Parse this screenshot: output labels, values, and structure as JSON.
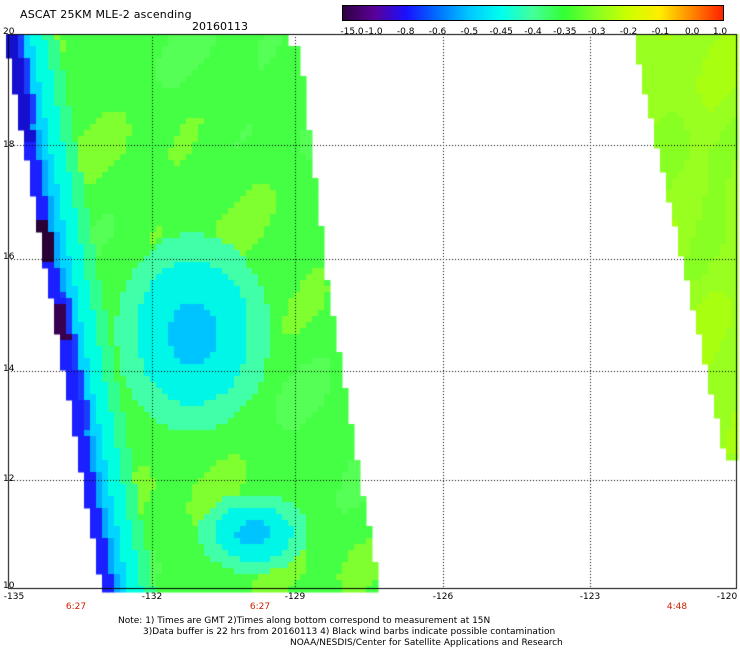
{
  "title": "ASCAT 25KM MLE-2 ascending",
  "date": "20160113",
  "colorbar": {
    "labels": [
      "-15.0",
      "-1.0",
      "-0.8",
      "-0.6",
      "-0.5",
      "-0.45",
      "-0.4",
      "-0.35",
      "-0.3",
      "-0.2",
      "-0.1",
      "0.0",
      "1.0"
    ],
    "colors": [
      "#300040",
      "#5a0098",
      "#1a10ff",
      "#0070ff",
      "#00c8ff",
      "#00ffee",
      "#44ff99",
      "#33ff33",
      "#88ff22",
      "#ccff00",
      "#ffee00",
      "#ff8800",
      "#ff2200"
    ]
  },
  "axes": {
    "lat_labels": [
      "20",
      "18",
      "16",
      "14",
      "12",
      "10"
    ],
    "lon_labels": [
      "-135",
      "-132",
      "-129",
      "-126",
      "-123",
      "-120"
    ],
    "time_labels": [
      "6:27",
      "6:27",
      "4:48"
    ]
  },
  "notes": {
    "line1": "Note: 1) Times are GMT 2)Times along bottom correspond to measurement at 15N",
    "line2": "3)Data buffer is 22 hrs from 20160113 4) Black wind barbs indicate possible contamination",
    "line3": "NOAA/NESDIS/Center for Satellite Applications and Research"
  }
}
